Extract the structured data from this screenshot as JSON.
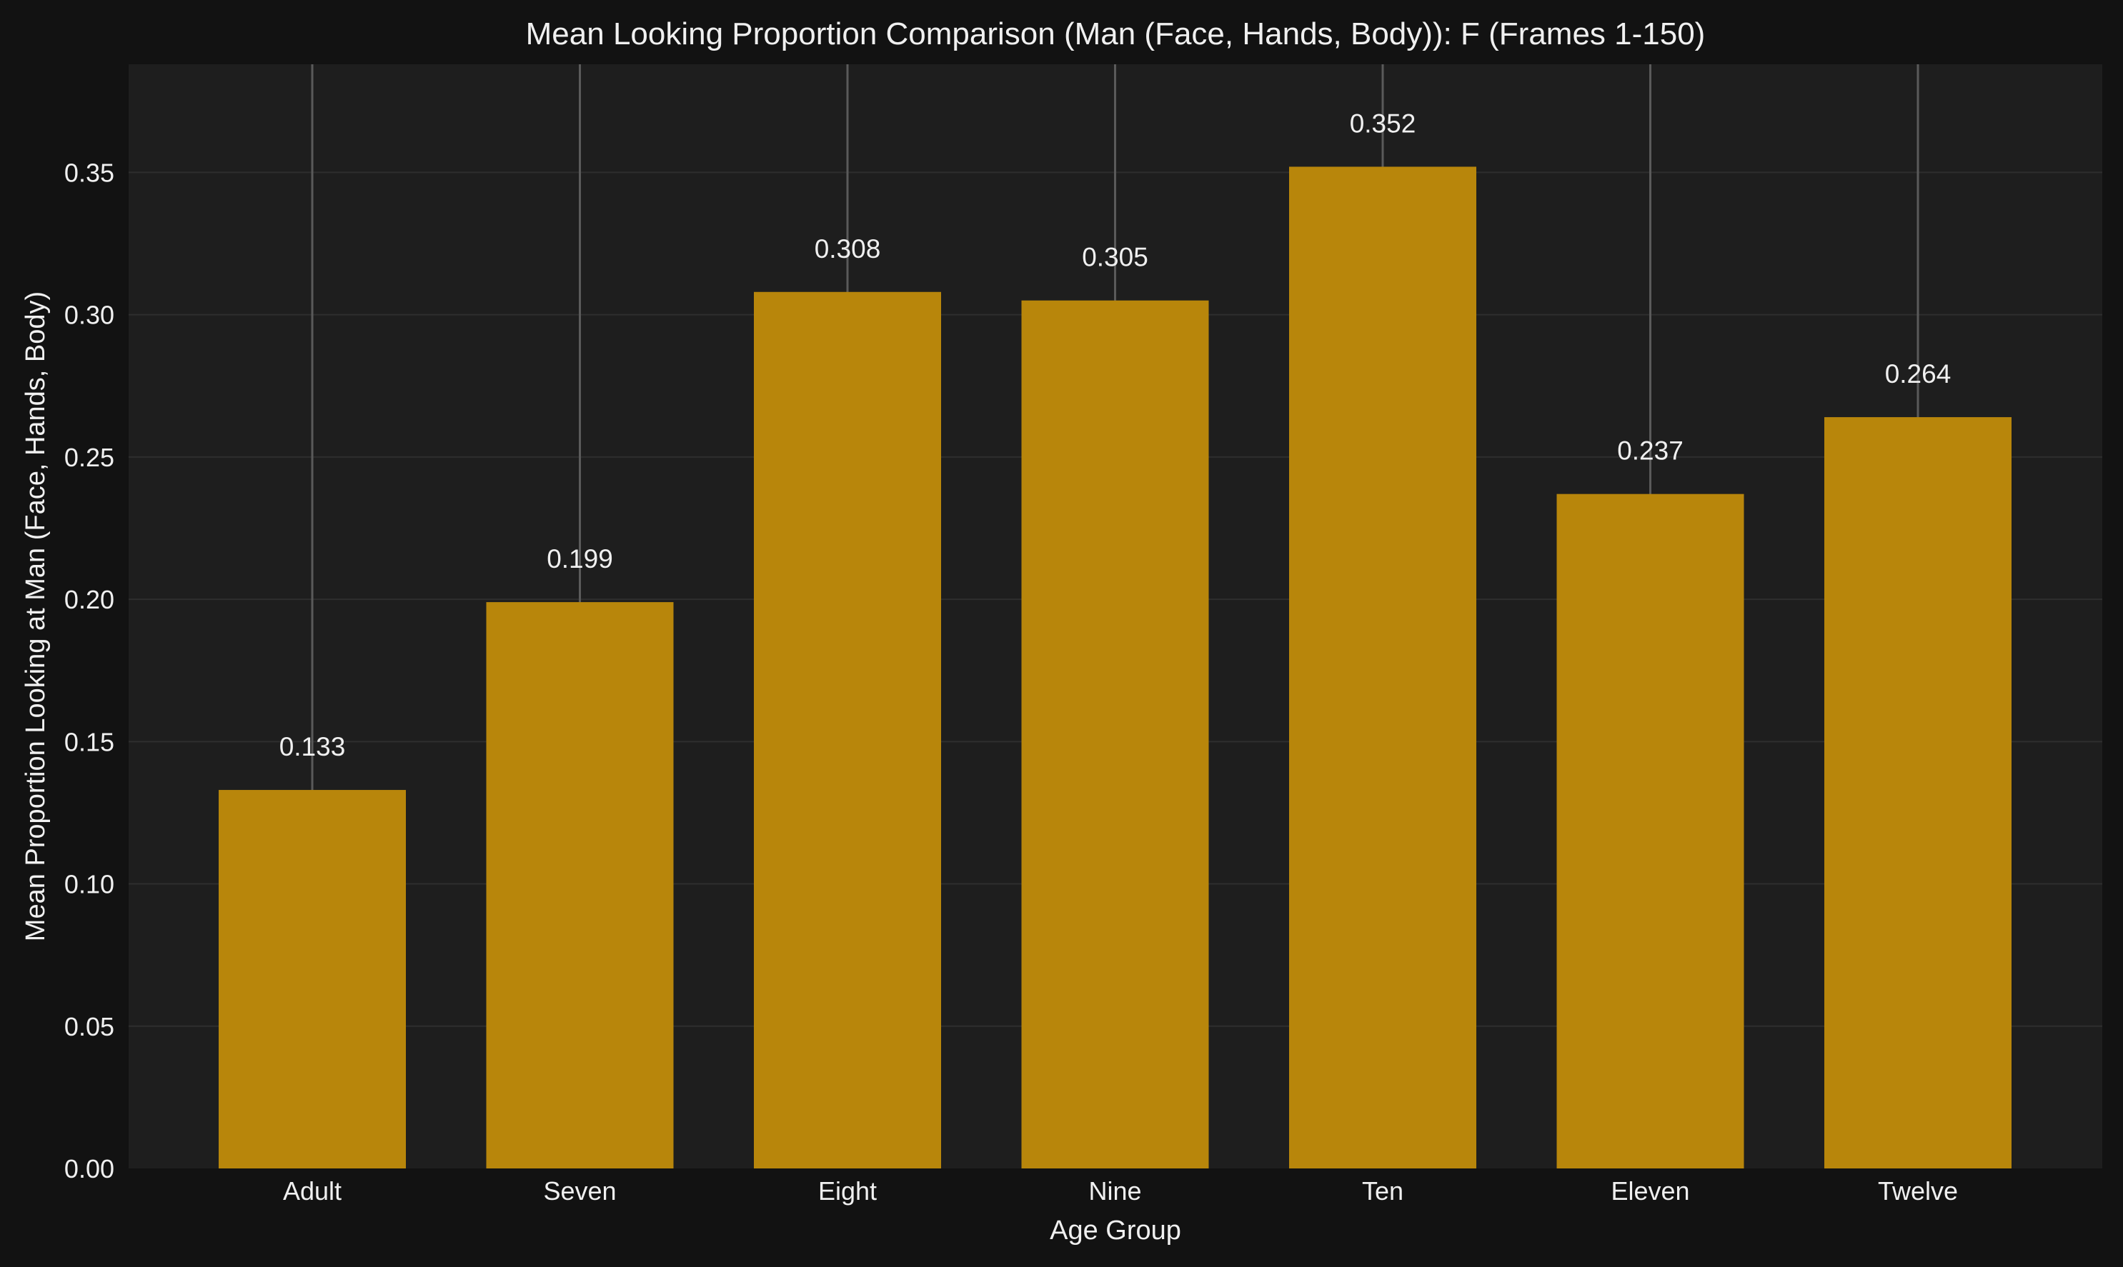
{
  "chart_data": {
    "type": "bar",
    "title": "Mean Looking Proportion Comparison (Man (Face, Hands, Body)): F (Frames 1-150)",
    "xlabel": "Age Group",
    "ylabel": "Mean Proportion Looking at Man (Face, Hands, Body)",
    "categories": [
      "Adult",
      "Seven",
      "Eight",
      "Nine",
      "Ten",
      "Eleven",
      "Twelve"
    ],
    "values": [
      0.133,
      0.199,
      0.308,
      0.305,
      0.352,
      0.237,
      0.264
    ],
    "value_labels": [
      "0.133",
      "0.199",
      "0.308",
      "0.305",
      "0.352",
      "0.237",
      "0.264"
    ],
    "ylim": [
      0,
      0.388
    ],
    "yticks": [
      0.0,
      0.05,
      0.1,
      0.15,
      0.2,
      0.25,
      0.3,
      0.35
    ],
    "ytick_labels": [
      "0.00",
      "0.05",
      "0.10",
      "0.15",
      "0.20",
      "0.25",
      "0.30",
      "0.35"
    ],
    "grid": true,
    "legend": "none",
    "colors": {
      "bar": "#b8860b",
      "background": "#121212",
      "plot_background": "#1e1e1e",
      "grid": "#2e2e2e",
      "text": "#f0f0f0",
      "error_line": "#5a5a5a"
    }
  }
}
